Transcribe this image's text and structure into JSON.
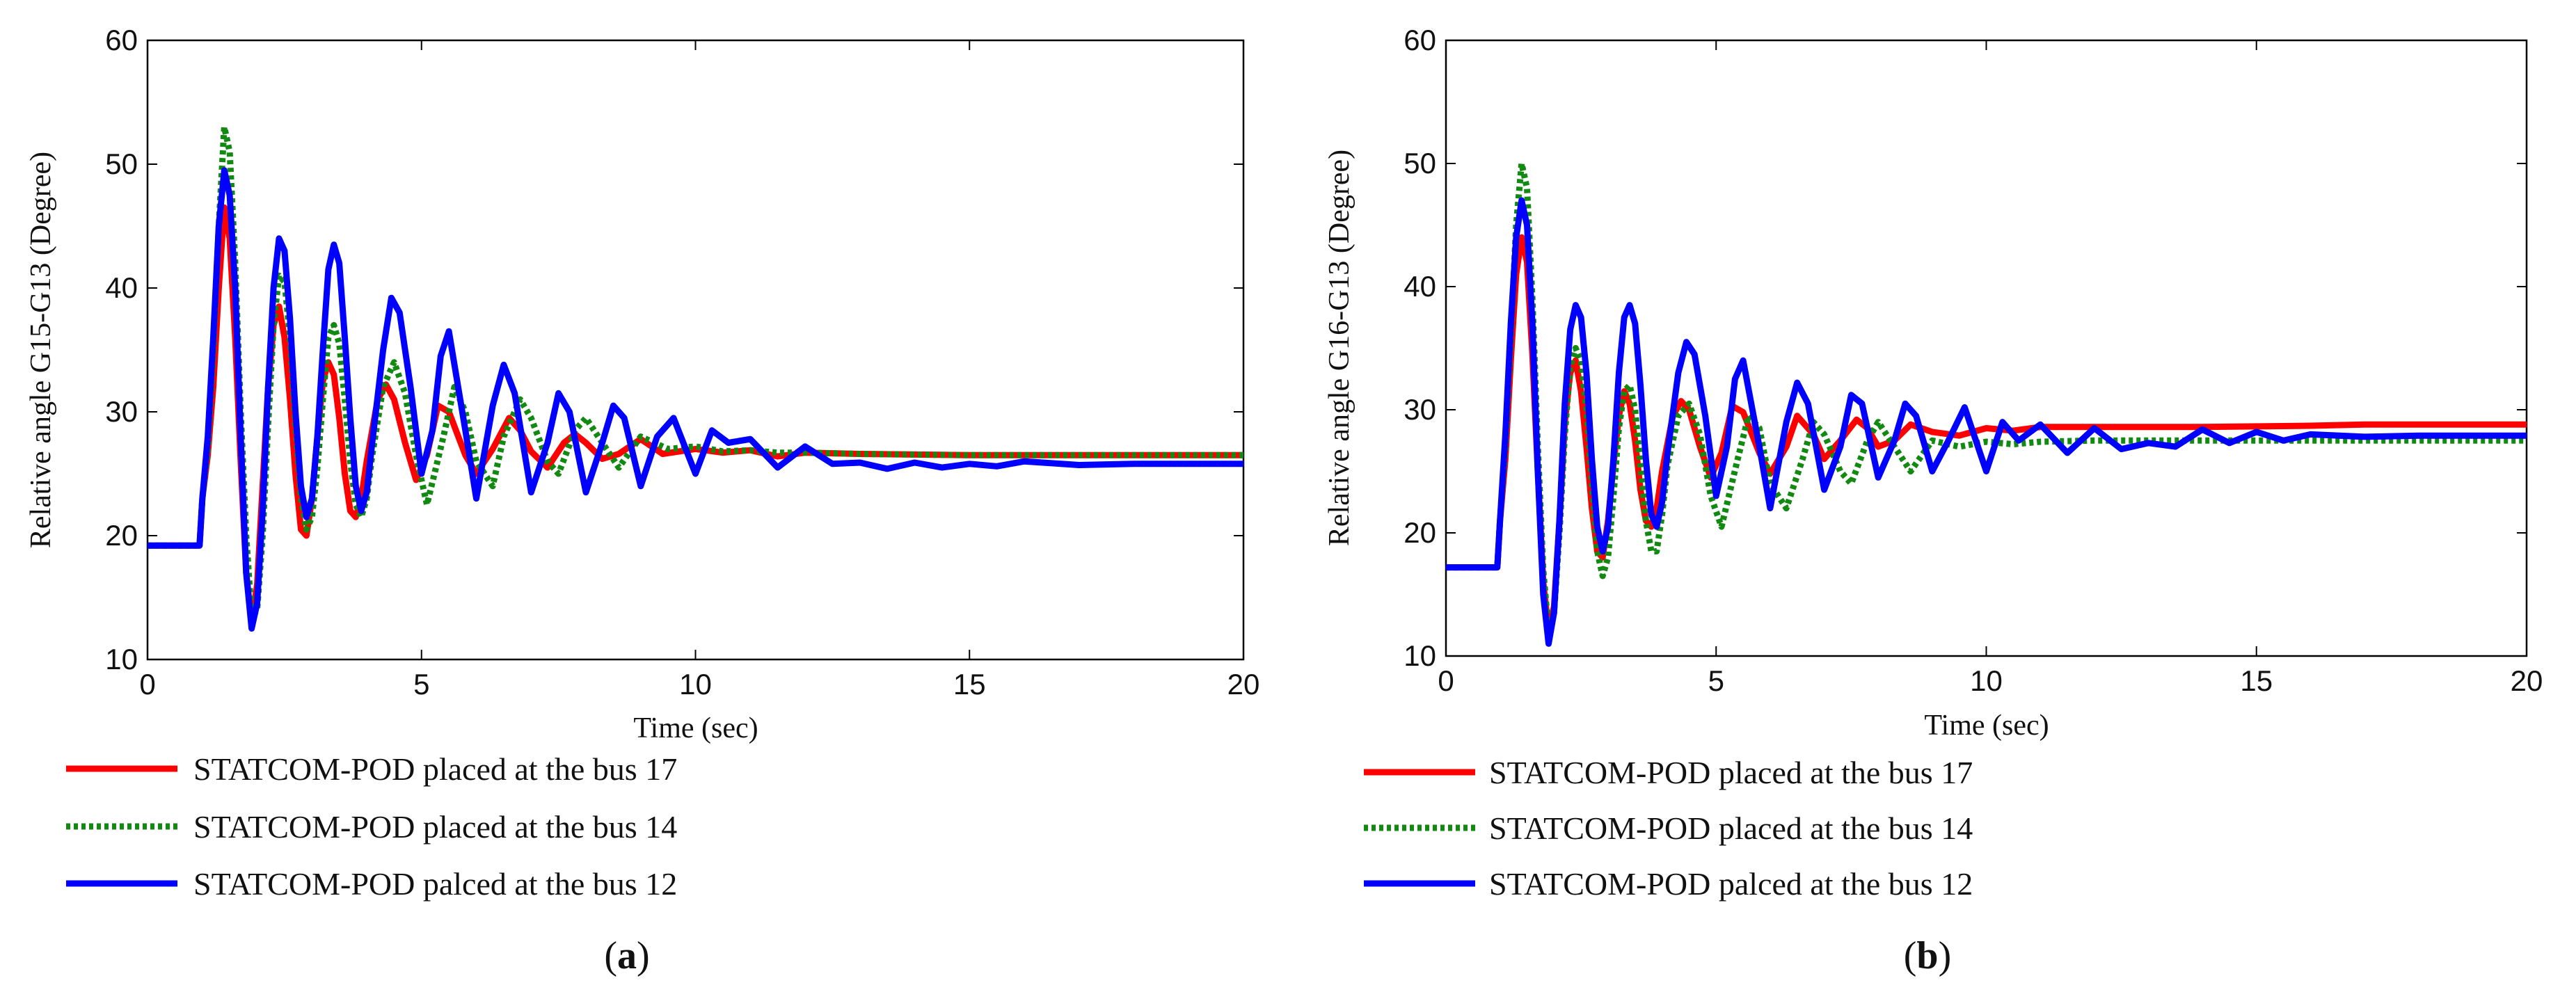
{
  "chart_data": [
    {
      "type": "line",
      "panel_label": "(a)",
      "panel_letter": "a",
      "xlabel": "Time (sec)",
      "ylabel": "Relative angle G15-G13 (Degree)",
      "xlim": [
        0,
        20
      ],
      "ylim": [
        10,
        60
      ],
      "xticks": [
        0,
        5,
        10,
        15,
        20
      ],
      "yticks": [
        10,
        20,
        30,
        40,
        50,
        60
      ],
      "grid": false,
      "legend_position": "below",
      "series": [
        {
          "name": "STATCOM-POD placed at the bus 17",
          "color": "#ff0000",
          "style": "solid",
          "x": [
            0,
            0.95,
            1.0,
            1.1,
            1.2,
            1.3,
            1.4,
            1.5,
            1.6,
            1.7,
            1.8,
            1.9,
            2.0,
            2.1,
            2.2,
            2.3,
            2.4,
            2.5,
            2.6,
            2.7,
            2.8,
            2.9,
            3.0,
            3.1,
            3.2,
            3.3,
            3.4,
            3.5,
            3.6,
            3.7,
            3.8,
            3.9,
            4.0,
            4.2,
            4.35,
            4.5,
            4.7,
            4.9,
            5.1,
            5.3,
            5.5,
            5.8,
            6.0,
            6.3,
            6.6,
            6.8,
            7.0,
            7.3,
            7.6,
            7.8,
            8.0,
            8.3,
            8.6,
            9.0,
            9.4,
            10.0,
            10.5,
            11.0,
            11.5,
            12.0,
            13.0,
            15.0,
            20.0
          ],
          "values": [
            19.2,
            19.2,
            23.0,
            26.5,
            32.0,
            40.0,
            46.5,
            44.0,
            36.0,
            26.0,
            17.0,
            13.0,
            16.0,
            24.0,
            32.0,
            37.0,
            38.5,
            36.0,
            31.0,
            25.0,
            20.5,
            20.0,
            23.0,
            28.0,
            32.5,
            34.0,
            33.0,
            29.5,
            25.0,
            22.0,
            21.5,
            23.0,
            26.0,
            31.0,
            32.2,
            31.0,
            27.5,
            24.5,
            26.5,
            30.5,
            30.0,
            26.5,
            25.0,
            27.0,
            29.5,
            28.5,
            26.8,
            25.5,
            27.5,
            28.2,
            27.5,
            26.2,
            26.6,
            27.8,
            26.6,
            27.0,
            26.7,
            26.9,
            26.4,
            26.7,
            26.6,
            26.5,
            26.5
          ]
        },
        {
          "name": "STATCOM-POD placed at the bus 14",
          "color": "#128a12",
          "style": "dotted",
          "x": [
            0,
            0.95,
            1.0,
            1.1,
            1.2,
            1.3,
            1.4,
            1.5,
            1.6,
            1.7,
            1.8,
            1.9,
            2.0,
            2.1,
            2.2,
            2.3,
            2.4,
            2.5,
            2.6,
            2.7,
            2.8,
            2.9,
            3.0,
            3.1,
            3.2,
            3.3,
            3.4,
            3.5,
            3.6,
            3.7,
            3.8,
            3.9,
            4.0,
            4.1,
            4.3,
            4.5,
            4.7,
            4.9,
            5.1,
            5.4,
            5.6,
            5.8,
            6.0,
            6.3,
            6.5,
            6.8,
            7.0,
            7.3,
            7.5,
            7.8,
            8.0,
            8.3,
            8.6,
            9.0,
            9.5,
            10.0,
            10.5,
            11.0,
            11.5,
            12.0,
            13.0,
            15.0,
            20.0
          ],
          "values": [
            19.2,
            19.2,
            23.0,
            27.0,
            35.0,
            45.0,
            53.0,
            51.0,
            42.0,
            30.0,
            20.0,
            13.5,
            14.0,
            20.0,
            29.0,
            37.0,
            41.0,
            40.5,
            36.0,
            29.0,
            23.0,
            20.5,
            21.5,
            25.5,
            31.0,
            36.0,
            37.0,
            35.5,
            31.0,
            26.0,
            22.5,
            21.5,
            23.0,
            26.5,
            32.0,
            34.0,
            31.5,
            26.5,
            22.5,
            28.0,
            32.0,
            30.0,
            26.0,
            24.0,
            28.0,
            31.0,
            29.5,
            26.0,
            25.0,
            28.5,
            29.5,
            27.5,
            25.5,
            28.0,
            27.0,
            27.2,
            26.8,
            26.9,
            26.7,
            26.7,
            26.6,
            26.5,
            26.5
          ]
        },
        {
          "name": "STATCOM-POD palced at the bus 12",
          "color": "#0000ff",
          "style": "solid",
          "x": [
            0,
            0.95,
            1.0,
            1.1,
            1.2,
            1.3,
            1.4,
            1.5,
            1.6,
            1.7,
            1.8,
            1.9,
            2.0,
            2.1,
            2.2,
            2.3,
            2.4,
            2.5,
            2.6,
            2.7,
            2.8,
            2.9,
            3.0,
            3.1,
            3.2,
            3.3,
            3.4,
            3.5,
            3.6,
            3.7,
            3.8,
            3.9,
            4.0,
            4.1,
            4.3,
            4.45,
            4.6,
            4.8,
            5.0,
            5.2,
            5.35,
            5.5,
            5.8,
            6.0,
            6.3,
            6.5,
            6.7,
            7.0,
            7.3,
            7.5,
            7.7,
            8.0,
            8.3,
            8.5,
            8.7,
            9.0,
            9.3,
            9.6,
            10.0,
            10.3,
            10.6,
            11.0,
            11.5,
            12.0,
            12.5,
            13.0,
            13.5,
            14.0,
            14.5,
            15.0,
            15.5,
            16.0,
            17.0,
            18.0,
            20.0
          ],
          "values": [
            19.2,
            19.2,
            23.0,
            28.0,
            36.0,
            45.0,
            49.5,
            47.5,
            40.0,
            28.0,
            17.0,
            12.5,
            14.5,
            22.0,
            32.0,
            40.0,
            44.0,
            43.0,
            37.5,
            30.0,
            24.0,
            21.5,
            23.0,
            28.0,
            35.0,
            41.5,
            43.5,
            42.0,
            36.0,
            29.5,
            24.0,
            22.0,
            23.5,
            27.5,
            35.0,
            39.2,
            38.0,
            32.0,
            25.0,
            28.5,
            34.5,
            36.5,
            28.5,
            23.0,
            30.5,
            33.8,
            31.5,
            23.5,
            27.5,
            31.5,
            30.0,
            23.5,
            27.5,
            30.5,
            29.5,
            24.0,
            28.0,
            29.5,
            25.0,
            28.5,
            27.5,
            27.8,
            25.5,
            27.2,
            25.8,
            25.9,
            25.4,
            25.9,
            25.5,
            25.8,
            25.6,
            26.0,
            25.7,
            25.8,
            25.8
          ]
        }
      ]
    },
    {
      "type": "line",
      "panel_label": "(b)",
      "panel_letter": "b",
      "xlabel": "Time (sec)",
      "ylabel": "Relative angle G16-G13 (Degree)",
      "xlim": [
        0,
        20
      ],
      "ylim": [
        10,
        60
      ],
      "xticks": [
        0,
        5,
        10,
        15,
        20
      ],
      "yticks": [
        10,
        20,
        30,
        40,
        50,
        60
      ],
      "grid": false,
      "legend_position": "below",
      "series": [
        {
          "name": "STATCOM-POD placed at the bus 17",
          "color": "#ff0000",
          "style": "solid",
          "x": [
            0,
            0.95,
            1.0,
            1.1,
            1.2,
            1.3,
            1.4,
            1.5,
            1.6,
            1.7,
            1.8,
            1.9,
            2.0,
            2.1,
            2.2,
            2.3,
            2.4,
            2.5,
            2.6,
            2.7,
            2.8,
            2.9,
            3.0,
            3.1,
            3.2,
            3.3,
            3.4,
            3.5,
            3.6,
            3.7,
            3.8,
            3.9,
            4.0,
            4.2,
            4.35,
            4.5,
            4.7,
            4.9,
            5.1,
            5.3,
            5.5,
            5.8,
            6.0,
            6.3,
            6.5,
            6.8,
            7.0,
            7.3,
            7.6,
            7.8,
            8.0,
            8.3,
            8.6,
            9.0,
            9.5,
            10.0,
            10.5,
            11.0,
            12.0,
            14.0,
            16.0,
            17.0,
            18.0,
            20.0
          ],
          "values": [
            17.2,
            17.2,
            21.0,
            26.0,
            34.0,
            41.0,
            44.0,
            42.0,
            34.5,
            25.0,
            16.0,
            12.0,
            14.0,
            21.0,
            29.0,
            33.0,
            34.0,
            31.5,
            27.0,
            22.0,
            18.5,
            18.0,
            21.0,
            25.5,
            29.5,
            31.5,
            30.5,
            27.5,
            23.5,
            21.0,
            20.5,
            22.0,
            25.0,
            29.5,
            30.7,
            30.0,
            27.0,
            24.5,
            26.5,
            30.3,
            29.8,
            26.5,
            24.8,
            27.0,
            29.5,
            28.0,
            26.0,
            27.5,
            29.2,
            28.5,
            27.0,
            27.5,
            28.8,
            28.2,
            27.9,
            28.5,
            28.3,
            28.6,
            28.6,
            28.6,
            28.7,
            28.8,
            28.8,
            28.8
          ]
        },
        {
          "name": "STATCOM-POD placed at the bus 14",
          "color": "#128a12",
          "style": "dotted",
          "x": [
            0,
            0.95,
            1.0,
            1.1,
            1.2,
            1.3,
            1.4,
            1.5,
            1.6,
            1.7,
            1.8,
            1.9,
            2.0,
            2.1,
            2.2,
            2.3,
            2.4,
            2.5,
            2.6,
            2.7,
            2.8,
            2.9,
            3.0,
            3.1,
            3.2,
            3.3,
            3.4,
            3.5,
            3.6,
            3.7,
            3.8,
            3.9,
            4.0,
            4.1,
            4.3,
            4.5,
            4.7,
            4.9,
            5.1,
            5.4,
            5.6,
            5.8,
            6.0,
            6.3,
            6.6,
            6.8,
            7.0,
            7.3,
            7.5,
            7.8,
            8.0,
            8.3,
            8.6,
            9.0,
            9.5,
            10.0,
            10.5,
            11.0,
            12.0,
            14.0,
            20.0
          ],
          "values": [
            17.2,
            17.2,
            21.0,
            27.0,
            36.0,
            45.0,
            50.0,
            48.0,
            39.0,
            27.0,
            17.0,
            12.0,
            13.5,
            20.0,
            28.0,
            33.5,
            35.0,
            34.0,
            30.0,
            24.0,
            18.5,
            16.5,
            18.0,
            23.0,
            28.5,
            31.5,
            32.0,
            30.0,
            25.5,
            21.0,
            18.5,
            18.5,
            21.5,
            25.5,
            29.5,
            30.5,
            28.0,
            23.0,
            20.5,
            26.0,
            29.5,
            28.5,
            24.0,
            22.0,
            26.0,
            29.0,
            28.0,
            25.0,
            24.0,
            27.5,
            29.0,
            27.0,
            25.0,
            27.5,
            27.0,
            27.4,
            27.2,
            27.4,
            27.5,
            27.5,
            27.5
          ]
        },
        {
          "name": "STATCOM-POD palced at the bus 12",
          "color": "#0000ff",
          "style": "solid",
          "x": [
            0,
            0.95,
            1.0,
            1.1,
            1.2,
            1.3,
            1.4,
            1.5,
            1.6,
            1.7,
            1.8,
            1.9,
            2.0,
            2.1,
            2.2,
            2.3,
            2.4,
            2.5,
            2.6,
            2.7,
            2.8,
            2.9,
            3.0,
            3.1,
            3.2,
            3.3,
            3.4,
            3.5,
            3.6,
            3.7,
            3.8,
            3.9,
            4.0,
            4.1,
            4.3,
            4.45,
            4.6,
            4.8,
            5.0,
            5.2,
            5.35,
            5.5,
            5.8,
            6.0,
            6.3,
            6.5,
            6.7,
            7.0,
            7.3,
            7.5,
            7.7,
            8.0,
            8.3,
            8.5,
            8.7,
            9.0,
            9.3,
            9.6,
            10.0,
            10.3,
            10.6,
            11.0,
            11.5,
            12.0,
            12.5,
            13.0,
            13.5,
            14.0,
            14.5,
            15.0,
            15.5,
            16.0,
            17.0,
            18.0,
            20.0
          ],
          "values": [
            17.2,
            17.2,
            21.0,
            28.0,
            37.0,
            44.0,
            47.0,
            45.0,
            37.0,
            25.0,
            15.0,
            11.0,
            13.5,
            21.0,
            30.5,
            36.5,
            38.5,
            37.5,
            33.0,
            26.0,
            20.5,
            18.5,
            20.5,
            26.0,
            33.0,
            37.5,
            38.5,
            37.0,
            32.0,
            26.0,
            21.5,
            20.5,
            22.5,
            26.5,
            33.0,
            35.5,
            34.5,
            29.5,
            23.0,
            27.0,
            32.5,
            34.0,
            27.0,
            22.0,
            29.0,
            32.2,
            30.5,
            23.5,
            27.0,
            31.2,
            30.5,
            24.5,
            27.5,
            30.5,
            29.5,
            25.0,
            27.5,
            30.2,
            25.0,
            29.0,
            27.5,
            28.8,
            26.5,
            28.5,
            26.8,
            27.3,
            27.0,
            28.4,
            27.3,
            28.2,
            27.5,
            28.0,
            27.8,
            27.9,
            27.9
          ]
        }
      ]
    }
  ]
}
